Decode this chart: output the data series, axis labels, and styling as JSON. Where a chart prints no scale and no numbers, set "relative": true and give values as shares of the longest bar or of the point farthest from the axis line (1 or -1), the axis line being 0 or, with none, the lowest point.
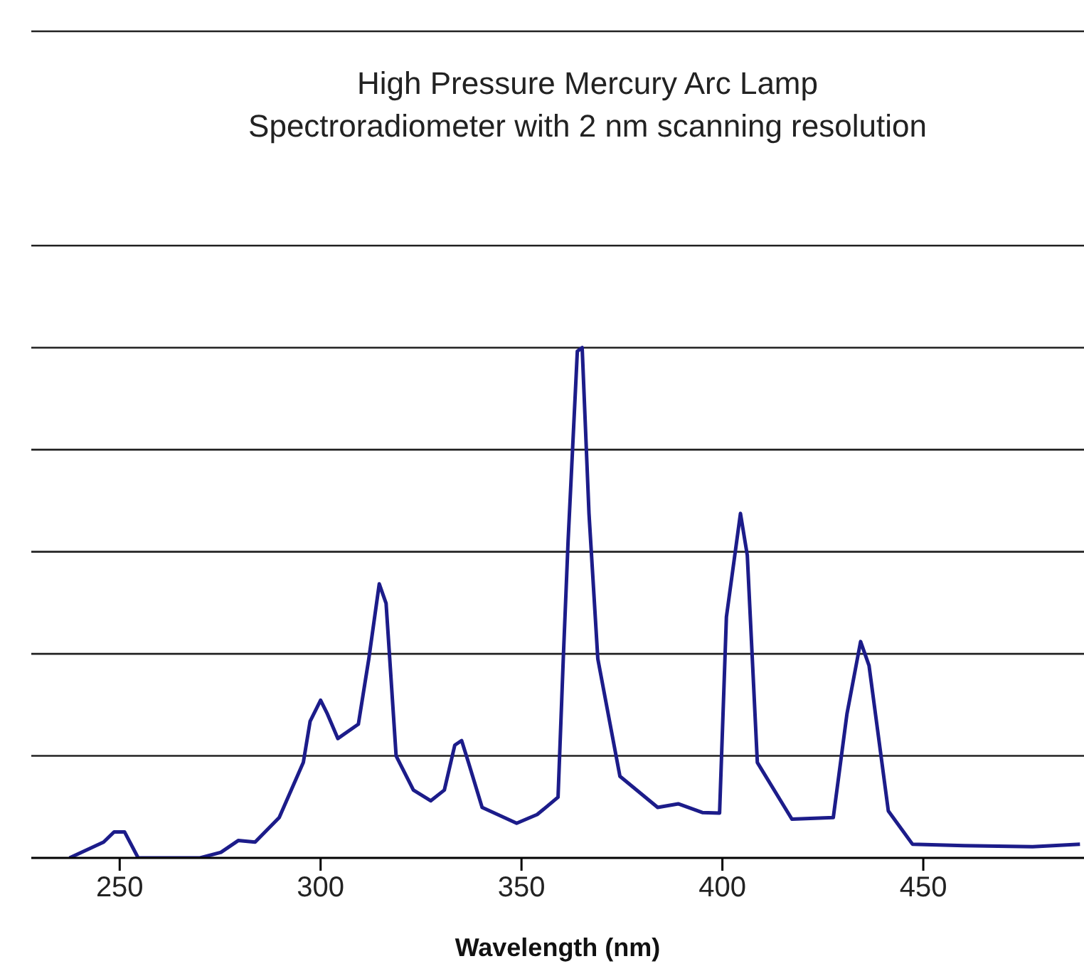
{
  "chart_data": {
    "type": "line",
    "title": "High Pressure Mercury Arc Lamp",
    "subtitle": "Spectroradiometer with 2 nm scanning resolution",
    "xlabel": "Wavelength (nm)",
    "relative": true,
    "xlim": [
      228,
      490
    ],
    "xticks": [
      250,
      300,
      350,
      400,
      450
    ],
    "grid": "y",
    "marker": "none",
    "line_style": "solid",
    "color": "#1c1c8a",
    "x": [
      237.5,
      246,
      248.6,
      251.2,
      254.6,
      270,
      275.2,
      279.5,
      283.7,
      289.7,
      295.7,
      297.4,
      300,
      301.7,
      304.3,
      309.4,
      312,
      314.6,
      316.3,
      318.8,
      323.1,
      327.4,
      330.8,
      333.4,
      335.1,
      336.8,
      340.2,
      348.8,
      353.9,
      359.1,
      360.4,
      361.6,
      363.9,
      365.1,
      366.8,
      369,
      374.5,
      383.9,
      389,
      395,
      399.3,
      401,
      404.5,
      406.2,
      408.7,
      417.3,
      427.6,
      431,
      434.4,
      436.5,
      441.3,
      447.3,
      460.1,
      477.2,
      489
    ],
    "values": [
      0,
      0.031,
      0.051,
      0.051,
      0,
      0,
      0.011,
      0.034,
      0.031,
      0.079,
      0.187,
      0.268,
      0.309,
      0.282,
      0.234,
      0.262,
      0.39,
      0.537,
      0.499,
      0.2,
      0.133,
      0.112,
      0.133,
      0.221,
      0.23,
      0.187,
      0.099,
      0.068,
      0.085,
      0.119,
      0.39,
      0.621,
      0.993,
      1,
      0.675,
      0.39,
      0.16,
      0.099,
      0.106,
      0.089,
      0.088,
      0.472,
      0.675,
      0.593,
      0.187,
      0.076,
      0.079,
      0.282,
      0.424,
      0.377,
      0.092,
      0.027,
      0.024,
      0.022,
      0.027
    ]
  }
}
